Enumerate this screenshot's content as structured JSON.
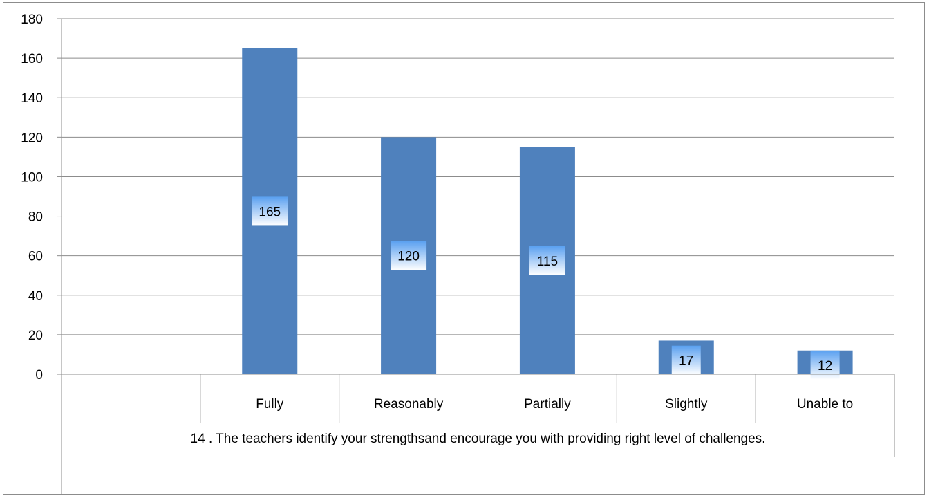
{
  "chart_data": {
    "type": "bar",
    "categories": [
      "",
      "Fully",
      "Reasonably",
      "Partially",
      "Slightly",
      "Unable to"
    ],
    "values": [
      null,
      165,
      120,
      115,
      17,
      12
    ],
    "group_label": "14 . The teachers identify your strengthsand encourage you with providing right level of challenges.",
    "title": "",
    "xlabel": "",
    "ylabel": "",
    "ylim": [
      0,
      180
    ],
    "yticks": [
      0,
      20,
      40,
      60,
      80,
      100,
      120,
      140,
      160,
      180
    ],
    "grid": true,
    "legend": "none",
    "data_labels": true,
    "colors": {
      "bar": "#4f81bd",
      "grid": "#8c8c8c",
      "label_top": "#5aa0f0",
      "label_bottom": "#ffffff"
    }
  }
}
